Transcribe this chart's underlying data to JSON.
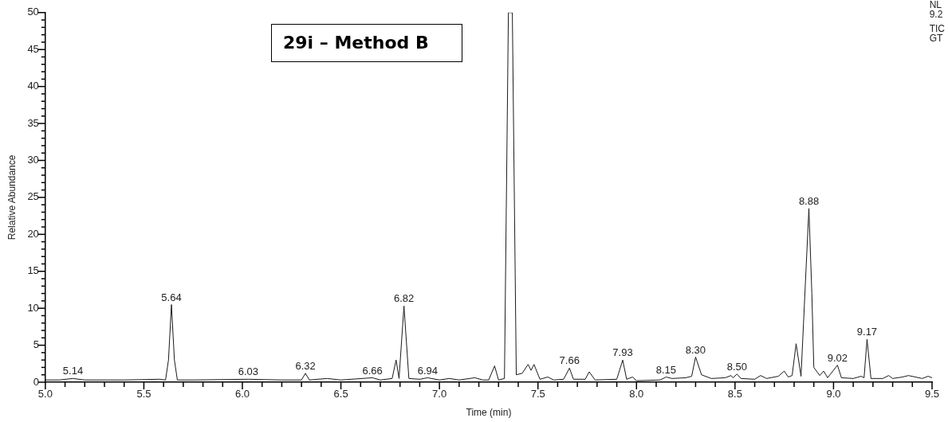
{
  "chart_data": {
    "type": "line",
    "title": "29i – Method B",
    "xlabel": "Time (min)",
    "ylabel": "Relative Abundance",
    "color": "#1a1a1a",
    "marker": "none",
    "line_style": "solid",
    "grid": false,
    "legend": false,
    "xlim": [
      5,
      9.5
    ],
    "ylim": [
      0,
      50
    ],
    "xticks": [
      {
        "value": 5,
        "label": "5.0"
      },
      {
        "value": 5.1,
        "label": null
      },
      {
        "value": 5.2,
        "label": null
      },
      {
        "value": 5.3,
        "label": null
      },
      {
        "value": 5.4,
        "label": null
      },
      5.5,
      {
        "value": 5.6,
        "label": null
      },
      {
        "value": 5.7,
        "label": null
      },
      {
        "value": 5.8,
        "label": null
      },
      {
        "value": 5.9,
        "label": null
      },
      {
        "value": 6,
        "label": "6.0"
      },
      {
        "value": 6.1,
        "label": null
      },
      {
        "value": 6.2,
        "label": null
      },
      {
        "value": 6.3,
        "label": null
      },
      {
        "value": 6.4,
        "label": null
      },
      6.5,
      {
        "value": 6.6,
        "label": null
      },
      {
        "value": 6.7,
        "label": null
      },
      {
        "value": 6.8,
        "label": null
      },
      {
        "value": 6.9,
        "label": null
      },
      {
        "value": 7,
        "label": "7.0"
      },
      {
        "value": 7.1,
        "label": null
      },
      {
        "value": 7.2,
        "label": null
      },
      {
        "value": 7.3,
        "label": null
      },
      {
        "value": 7.4,
        "label": null
      },
      7.5,
      {
        "value": 7.6,
        "label": null
      },
      {
        "value": 7.7,
        "label": null
      },
      {
        "value": 7.8,
        "label": null
      },
      {
        "value": 7.9,
        "label": null
      },
      {
        "value": 8,
        "label": "8.0"
      },
      {
        "value": 8.1,
        "label": null
      },
      {
        "value": 8.2,
        "label": null
      },
      {
        "value": 8.3,
        "label": null
      },
      {
        "value": 8.4,
        "label": null
      },
      8.5,
      {
        "value": 8.6,
        "label": null
      },
      {
        "value": 8.7,
        "label": null
      },
      {
        "value": 8.8,
        "label": null
      },
      {
        "value": 8.9,
        "label": null
      },
      {
        "value": 9,
        "label": "9.0"
      },
      {
        "value": 9.1,
        "label": null
      },
      {
        "value": 9.2,
        "label": null
      },
      {
        "value": 9.3,
        "label": null
      },
      {
        "value": 9.4,
        "label": null
      },
      9.5
    ],
    "yticks": [
      0,
      {
        "value": 1,
        "label": null
      },
      {
        "value": 2,
        "label": null
      },
      {
        "value": 3,
        "label": null
      },
      {
        "value": 4,
        "label": null
      },
      5,
      {
        "value": 6,
        "label": null
      },
      {
        "value": 7,
        "label": null
      },
      {
        "value": 8,
        "label": null
      },
      {
        "value": 9,
        "label": null
      },
      10,
      {
        "value": 11,
        "label": null
      },
      {
        "value": 12,
        "label": null
      },
      {
        "value": 13,
        "label": null
      },
      {
        "value": 14,
        "label": null
      },
      15,
      {
        "value": 16,
        "label": null
      },
      {
        "value": 17,
        "label": null
      },
      {
        "value": 18,
        "label": null
      },
      {
        "value": 19,
        "label": null
      },
      20,
      {
        "value": 21,
        "label": null
      },
      {
        "value": 22,
        "label": null
      },
      {
        "value": 23,
        "label": null
      },
      {
        "value": 24,
        "label": null
      },
      25,
      {
        "value": 26,
        "label": null
      },
      {
        "value": 27,
        "label": null
      },
      {
        "value": 28,
        "label": null
      },
      {
        "value": 29,
        "label": null
      },
      30,
      {
        "value": 31,
        "label": null
      },
      {
        "value": 32,
        "label": null
      },
      {
        "value": 33,
        "label": null
      },
      {
        "value": 34,
        "label": null
      },
      35,
      {
        "value": 36,
        "label": null
      },
      {
        "value": 37,
        "label": null
      },
      {
        "value": 38,
        "label": null
      },
      {
        "value": 39,
        "label": null
      },
      40,
      {
        "value": 41,
        "label": null
      },
      {
        "value": 42,
        "label": null
      },
      {
        "value": 43,
        "label": null
      },
      {
        "value": 44,
        "label": null
      },
      45,
      {
        "value": 46,
        "label": null
      },
      {
        "value": 47,
        "label": null
      },
      {
        "value": 48,
        "label": null
      },
      {
        "value": 49,
        "label": null
      },
      50
    ],
    "x": [
      5.0,
      5.07,
      5.14,
      5.2,
      5.4,
      5.58,
      5.61,
      5.625,
      5.64,
      5.655,
      5.67,
      5.75,
      6.03,
      6.2,
      6.3,
      6.32,
      6.34,
      6.43,
      6.5,
      6.66,
      6.7,
      6.76,
      6.78,
      6.795,
      6.82,
      6.845,
      6.9,
      6.94,
      7.0,
      7.05,
      7.1,
      7.18,
      7.22,
      7.25,
      7.28,
      7.3,
      7.33,
      7.35,
      7.37,
      7.39,
      7.42,
      7.45,
      7.465,
      7.48,
      7.51,
      7.55,
      7.58,
      7.63,
      7.66,
      7.68,
      7.74,
      7.76,
      7.79,
      7.9,
      7.93,
      7.95,
      7.98,
      8.0,
      8.12,
      8.15,
      8.18,
      8.25,
      8.28,
      8.3,
      8.33,
      8.38,
      8.45,
      8.48,
      8.49,
      8.51,
      8.53,
      8.6,
      8.63,
      8.66,
      8.72,
      8.75,
      8.77,
      8.79,
      8.81,
      8.835,
      8.875,
      8.89,
      8.9,
      8.93,
      8.95,
      8.97,
      9.02,
      9.04,
      9.1,
      9.14,
      9.155,
      9.17,
      9.19,
      9.25,
      9.28,
      9.3,
      9.35,
      9.38,
      9.45,
      9.48,
      9.5
    ],
    "values": [
      0.3,
      0.3,
      0.5,
      0.3,
      0.3,
      0.4,
      0.3,
      3,
      10.5,
      3,
      0.3,
      0.3,
      0.4,
      0.3,
      0.3,
      1.2,
      0.3,
      0.5,
      0.3,
      0.6,
      0.3,
      0.5,
      3,
      0.5,
      10.3,
      0.5,
      0.4,
      0.6,
      0.3,
      0.5,
      0.3,
      0.6,
      0.3,
      0.3,
      2.2,
      0.3,
      0.5,
      50,
      50,
      1,
      1.2,
      2.4,
      1.6,
      2.4,
      0.4,
      0.7,
      0.3,
      0.4,
      1.9,
      0.4,
      0.4,
      1.4,
      0.3,
      0.4,
      3,
      0.4,
      0.7,
      0.2,
      0.3,
      0.7,
      0.5,
      0.6,
      0.8,
      3.4,
      1,
      0.5,
      0.6,
      0.9,
      0.6,
      1.1,
      0.5,
      0.4,
      0.9,
      0.5,
      0.8,
      1.5,
      0.7,
      0.9,
      5.2,
      0.8,
      23.5,
      12,
      2,
      0.9,
      1.5,
      0.6,
      2.3,
      0.6,
      0.5,
      0.8,
      0.6,
      5.8,
      0.5,
      0.5,
      0.9,
      0.5,
      0.7,
      0.9,
      0.5,
      0.8,
      0.6
    ],
    "annotations": [
      "NL",
      "9.2",
      "TIC",
      "GT",
      {
        "text": "5.14",
        "x": 5.14,
        "y": 0.5
      },
      {
        "text": "5.64",
        "x": 5.64,
        "y": 10.5
      },
      {
        "text": "6.03",
        "x": 6.03,
        "y": 0.4
      },
      {
        "text": "6.32",
        "x": 6.32,
        "y": 1.2
      },
      {
        "text": "6.66",
        "x": 6.66,
        "y": 0.6
      },
      {
        "text": "6.82",
        "x": 6.82,
        "y": 10.3
      },
      {
        "text": "6.94",
        "x": 6.94,
        "y": 0.6
      },
      {
        "text": "7.66",
        "x": 7.66,
        "y": 1.9
      },
      {
        "text": "7.93",
        "x": 7.93,
        "y": 3
      },
      {
        "text": "8.15",
        "x": 8.15,
        "y": 0.7
      },
      {
        "text": "8.30",
        "x": 8.3,
        "y": 3.4
      },
      {
        "text": "8.50",
        "x": 8.51,
        "y": 1.1
      },
      {
        "text": "8.88",
        "x": 8.875,
        "y": 23.5
      },
      {
        "text": "9.02",
        "x": 9.02,
        "y": 2.3
      },
      {
        "text": "9.17",
        "x": 9.17,
        "y": 5.8
      }
    ]
  }
}
